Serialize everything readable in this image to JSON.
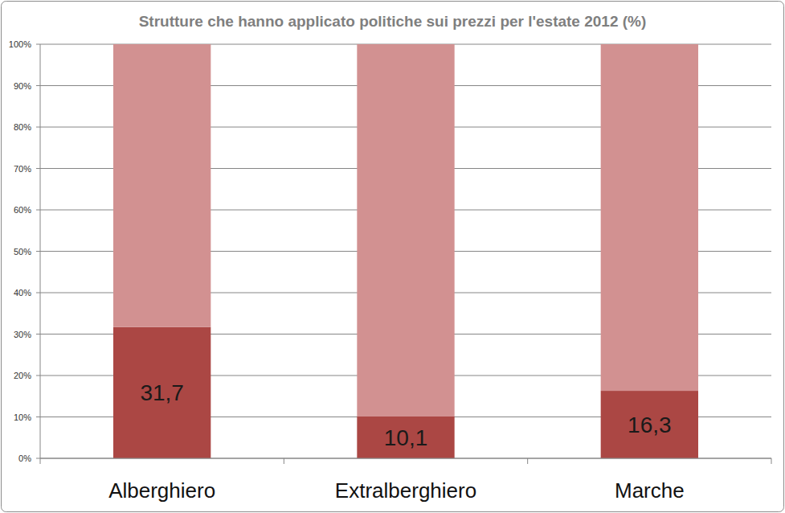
{
  "chart_data": {
    "type": "bar",
    "title": "Strutture che hanno applicato politiche sui prezzi per l'estate 2012 (%)",
    "categories": [
      "Alberghiero",
      "Extralberghiero",
      "Marche"
    ],
    "stacked": true,
    "grid": true,
    "series": [
      {
        "values": [
          31.7,
          10.1,
          16.3
        ],
        "value_labels": [
          "31,7",
          "10,1",
          "16,3"
        ],
        "color": "#ab4744",
        "data_labels": true
      },
      {
        "values": [
          68.3,
          89.9,
          83.7
        ],
        "color": "#d29191"
      }
    ],
    "ylim": [
      0,
      100
    ],
    "yticks": [
      {
        "value": 0,
        "label": "0%"
      },
      {
        "value": 10,
        "label": "10%"
      },
      {
        "value": 20,
        "label": "20%"
      },
      {
        "value": 30,
        "label": "30%"
      },
      {
        "value": 40,
        "label": "40%"
      },
      {
        "value": 50,
        "label": "50%"
      },
      {
        "value": 60,
        "label": "60%"
      },
      {
        "value": 70,
        "label": "70%"
      },
      {
        "value": 80,
        "label": "80%"
      },
      {
        "value": 90,
        "label": "90%"
      },
      {
        "value": 100,
        "label": "100%"
      }
    ]
  }
}
